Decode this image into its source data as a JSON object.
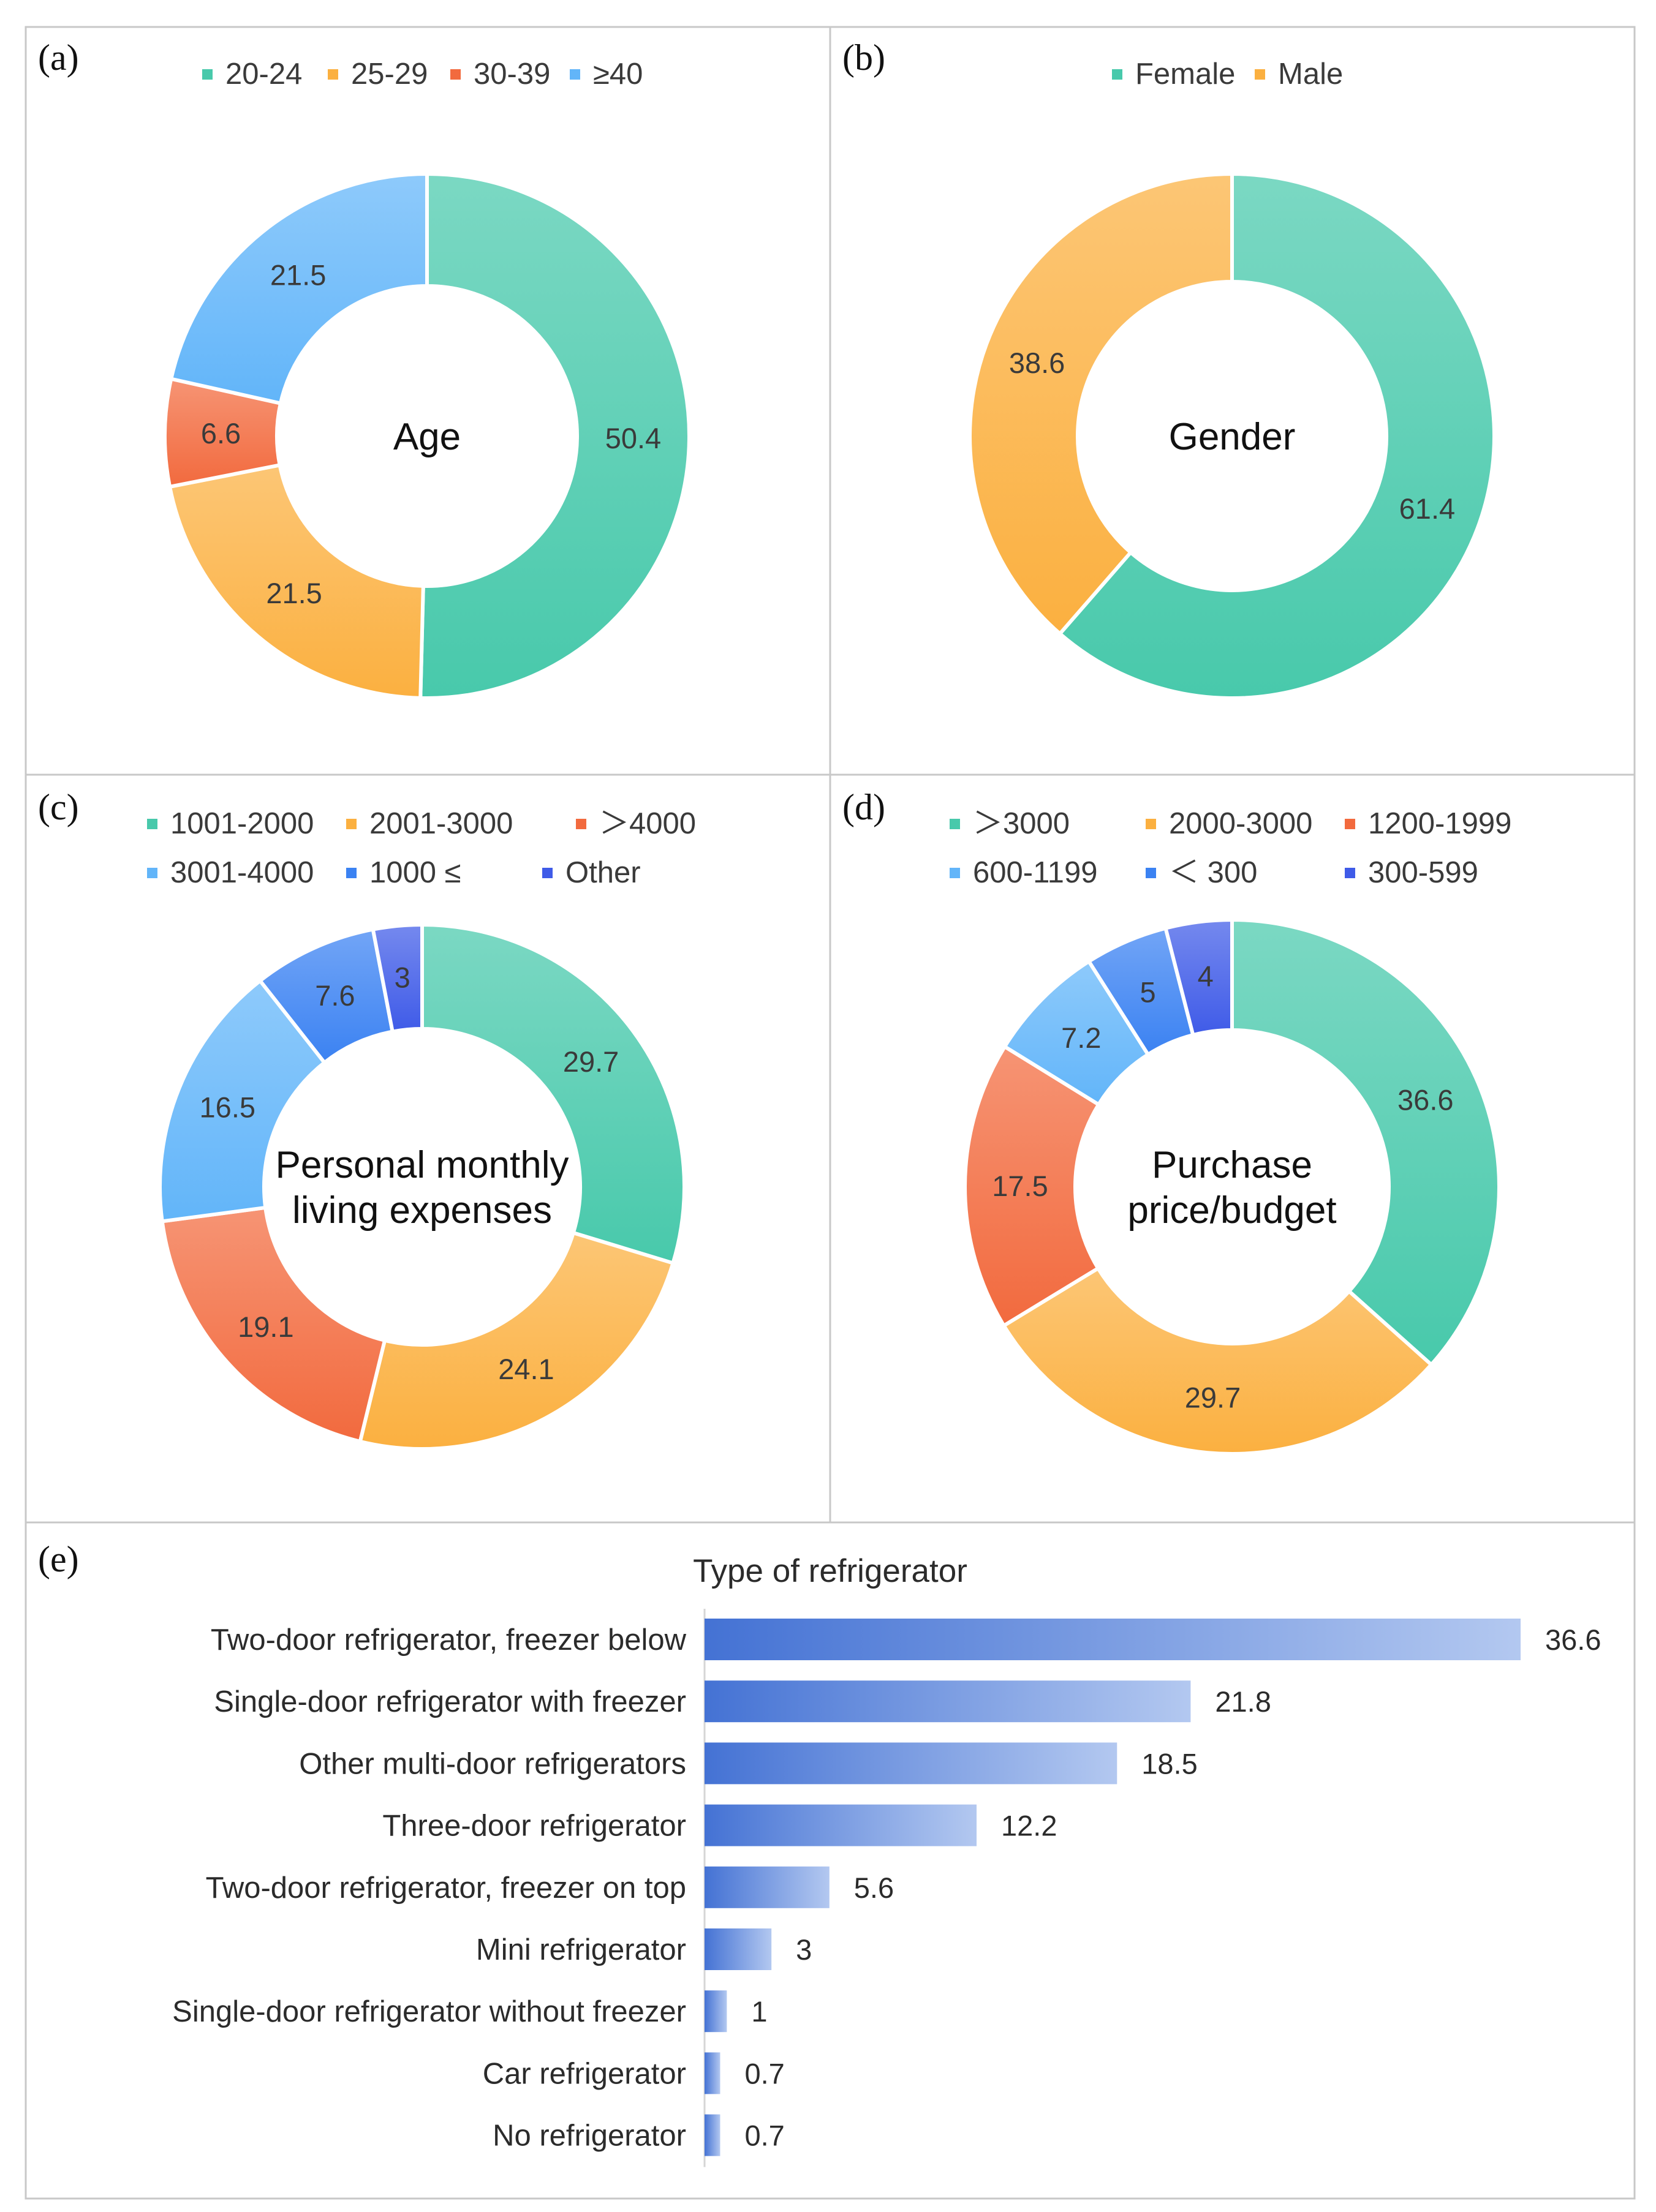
{
  "figure": {
    "panel_tags": [
      "(a)",
      "(b)",
      "(c)",
      "(d)",
      "(e)"
    ]
  },
  "chart_data": [
    {
      "panel": "(a)",
      "type": "pie",
      "variant": "donut",
      "center_label": [
        "Age"
      ],
      "legend": [
        "20-24",
        "25-29",
        "30-39",
        "≥40"
      ],
      "legend_rows": [
        4
      ],
      "categories": [
        "20-24",
        "25-29",
        "30-39",
        "≥40"
      ],
      "values": [
        50.4,
        21.5,
        6.6,
        21.5
      ],
      "labels": [
        "50.4",
        "21.5",
        "6.6",
        "21.5"
      ],
      "colors": [
        "#48c9ab",
        "#fbb040",
        "#f26a3e",
        "#62b5f9"
      ]
    },
    {
      "panel": "(b)",
      "type": "pie",
      "variant": "donut",
      "center_label": [
        "Gender"
      ],
      "legend": [
        "Female",
        "Male"
      ],
      "legend_rows": [
        2
      ],
      "categories": [
        "Female",
        "Male"
      ],
      "values": [
        61.4,
        38.6
      ],
      "labels": [
        "61.4",
        "38.6"
      ],
      "colors": [
        "#48c9ab",
        "#fbb040"
      ]
    },
    {
      "panel": "(c)",
      "type": "pie",
      "variant": "donut",
      "center_label": [
        "Personal monthly",
        "living expenses"
      ],
      "legend": [
        "1001-2000",
        "2001-3000",
        "＞4000",
        "3001-4000",
        "1000 ≤",
        "Other"
      ],
      "legend_rows": [
        3,
        3
      ],
      "categories": [
        "1001-2000",
        "2001-3000",
        "＞4000",
        "3001-4000",
        "1000 ≤",
        "Other"
      ],
      "values": [
        29.7,
        24.1,
        19.1,
        16.5,
        7.6,
        3
      ],
      "labels": [
        "29.7",
        "24.1",
        "19.1",
        "16.5",
        "7.6",
        "3"
      ],
      "colors": [
        "#48c9ab",
        "#fbb040",
        "#f26a3e",
        "#62b5f9",
        "#3b82f2",
        "#3f5be8"
      ]
    },
    {
      "panel": "(d)",
      "type": "pie",
      "variant": "donut",
      "center_label": [
        "Purchase",
        "price/budget"
      ],
      "legend": [
        "＞3000",
        "2000-3000",
        "1200-1999",
        "600-1199",
        "＜ 300",
        "300-599"
      ],
      "legend_rows": [
        3,
        3
      ],
      "categories": [
        "＞3000",
        "2000-3000",
        "1200-1999",
        "600-1199",
        "＜ 300",
        "300-599"
      ],
      "values": [
        36.6,
        29.7,
        17.5,
        7.2,
        5,
        4
      ],
      "labels": [
        "36.6",
        "29.7",
        "17.5",
        "7.2",
        "5",
        "4"
      ],
      "colors": [
        "#48c9ab",
        "#fbb040",
        "#f26a3e",
        "#62b5f9",
        "#3b82f2",
        "#3f5be8"
      ]
    },
    {
      "panel": "(e)",
      "type": "bar",
      "orientation": "horizontal",
      "title": "Type of refrigerator",
      "categories": [
        "Two-door refrigerator, freezer below",
        "Single-door refrigerator with freezer",
        "Other multi-door refrigerators",
        "Three-door refrigerator",
        "Two-door refrigerator, freezer on top",
        "Mini refrigerator",
        "Single-door refrigerator without freezer",
        "Car refrigerator",
        "No refrigerator"
      ],
      "values": [
        36.6,
        21.8,
        18.5,
        12.2,
        5.6,
        3,
        1,
        0.7,
        0.7
      ],
      "labels": [
        "36.6",
        "21.8",
        "18.5",
        "12.2",
        "5.6",
        "3",
        "1",
        "0.7",
        "0.7"
      ],
      "xlim": [
        0,
        36.6
      ],
      "xlabel": "",
      "ylabel": "",
      "colors": {
        "bar_start": "#4472d4",
        "bar_end": "#b3c8f0"
      }
    }
  ]
}
